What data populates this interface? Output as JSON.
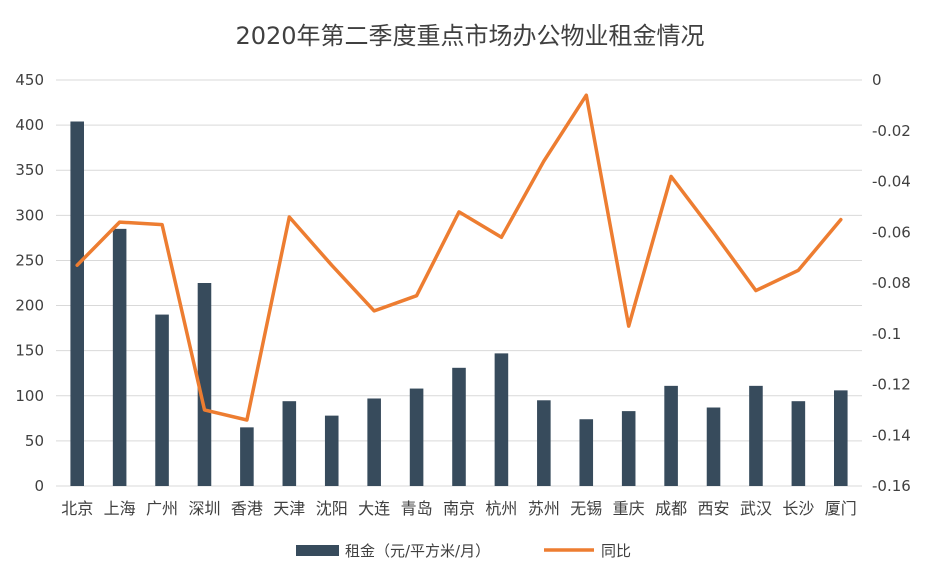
{
  "chart_data": {
    "type": "bar",
    "title": "2020年第二季度重点市场办公物业租金情况",
    "categories": [
      "北京",
      "上海",
      "广州",
      "深圳",
      "香港",
      "天津",
      "沈阳",
      "大连",
      "青岛",
      "南京",
      "杭州",
      "苏州",
      "无锡",
      "重庆",
      "成都",
      "西安",
      "武汉",
      "长沙",
      "厦门"
    ],
    "series": [
      {
        "name": "租金（元/平方米/月）",
        "type": "bar",
        "axis": "left",
        "color": "#374b5c",
        "values": [
          404,
          285,
          190,
          225,
          65,
          94,
          78,
          97,
          108,
          131,
          147,
          95,
          74,
          83,
          111,
          87,
          111,
          94,
          106
        ]
      },
      {
        "name": "同比",
        "type": "line",
        "axis": "right",
        "color": "#ed7d31",
        "values": [
          -0.073,
          -0.056,
          -0.057,
          -0.13,
          -0.134,
          -0.054,
          -0.073,
          -0.091,
          -0.085,
          -0.052,
          -0.062,
          -0.032,
          -0.006,
          -0.097,
          -0.038,
          -0.06,
          -0.083,
          -0.075,
          -0.055
        ]
      }
    ],
    "left_axis": {
      "ylim": [
        0,
        450
      ],
      "ticks": [
        "450",
        "400",
        "350",
        "300",
        "250",
        "200",
        "150",
        "100",
        "50",
        "0"
      ]
    },
    "right_axis": {
      "ylim": [
        -0.16,
        0
      ],
      "ticks": [
        "0",
        "-0.02",
        "-0.04",
        "-0.06",
        "-0.08",
        "-0.1",
        "-0.12",
        "-0.14",
        "-0.16"
      ]
    },
    "grid": true,
    "legend_position": "bottom"
  }
}
